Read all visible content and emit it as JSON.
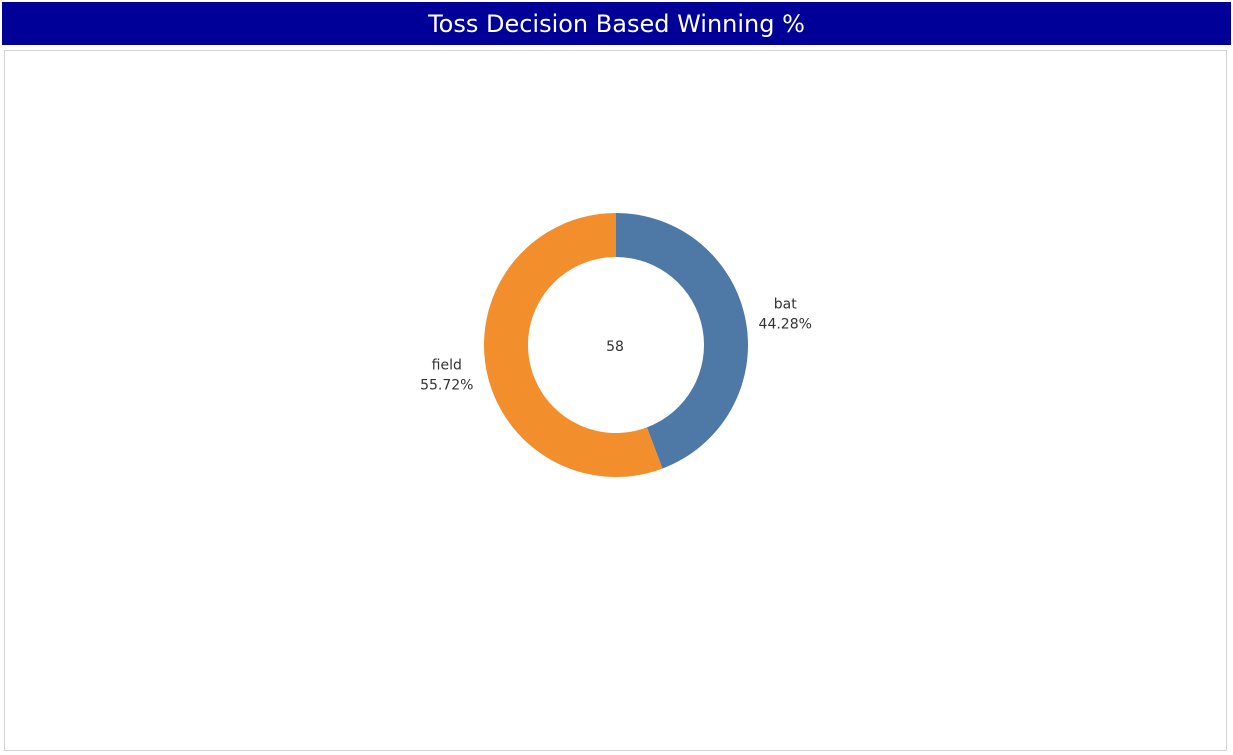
{
  "header": {
    "title": "Toss Decision Based Winning %"
  },
  "chart_data": {
    "type": "pie",
    "donut": true,
    "title": "Toss Decision Based Winning %",
    "center_text": "58",
    "slices": [
      {
        "label": "bat",
        "value": 44.28,
        "display": "44.28%",
        "color": "#4e79a7"
      },
      {
        "label": "field",
        "value": 55.72,
        "display": "55.72%",
        "color": "#f28e2b"
      }
    ],
    "legend": "none"
  }
}
